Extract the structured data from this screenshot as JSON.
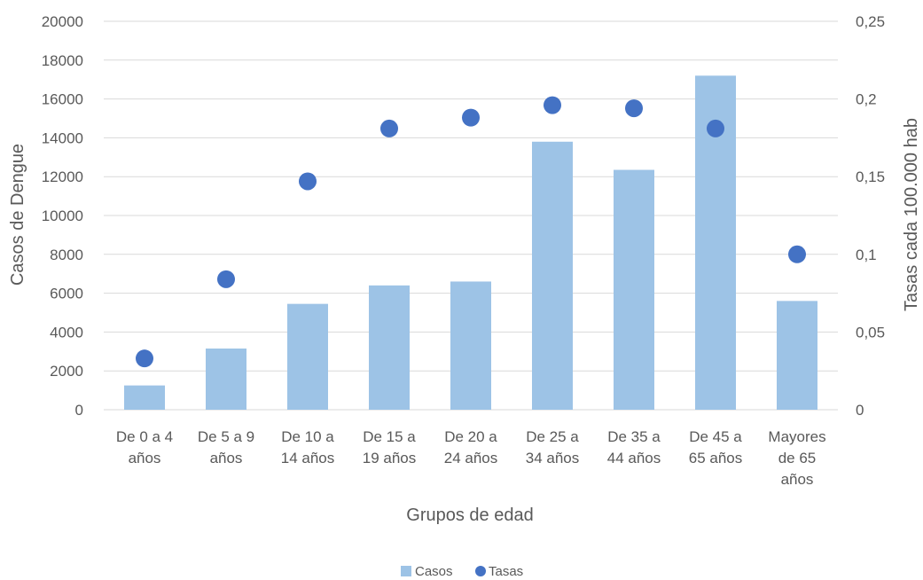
{
  "chart_data": {
    "type": "bar",
    "title": "",
    "xlabel": "Grupos de edad",
    "ylabel": "Casos de Dengue",
    "y2label": "Tasas  cada 100.000 hab",
    "categories": [
      [
        "De 0 a 4",
        "años"
      ],
      [
        "De 5 a 9",
        "años"
      ],
      [
        "De 10 a",
        "14 años"
      ],
      [
        "De 15 a",
        "19 años"
      ],
      [
        "De 20 a",
        "24 años"
      ],
      [
        "De 25 a",
        "34 años"
      ],
      [
        "De 35 a",
        "44 años"
      ],
      [
        "De 45 a",
        "65 años"
      ],
      [
        "Mayores",
        "de 65",
        "años"
      ]
    ],
    "series": [
      {
        "name": "Casos",
        "type": "bar",
        "axis": "left",
        "color": "#9DC3E6",
        "values": [
          1250,
          3150,
          5450,
          6400,
          6600,
          13800,
          12350,
          17200,
          5600
        ]
      },
      {
        "name": "Tasas",
        "type": "scatter",
        "axis": "right",
        "color": "#4472C4",
        "values": [
          0.033,
          0.084,
          0.147,
          0.181,
          0.188,
          0.196,
          0.194,
          0.181,
          0.1
        ]
      }
    ],
    "ylim": [
      0,
      20000
    ],
    "y2lim": [
      0,
      0.25
    ],
    "yticks": [
      "0",
      "2000",
      "4000",
      "6000",
      "8000",
      "10000",
      "12000",
      "14000",
      "16000",
      "18000",
      "20000"
    ],
    "y2ticks": [
      "0",
      "0,05",
      "0,1",
      "0,15",
      "0,2",
      "0,25"
    ],
    "grid": true,
    "legend_position": "bottom",
    "gridline_color": "#D9D9D9",
    "text_color": "#595959"
  }
}
